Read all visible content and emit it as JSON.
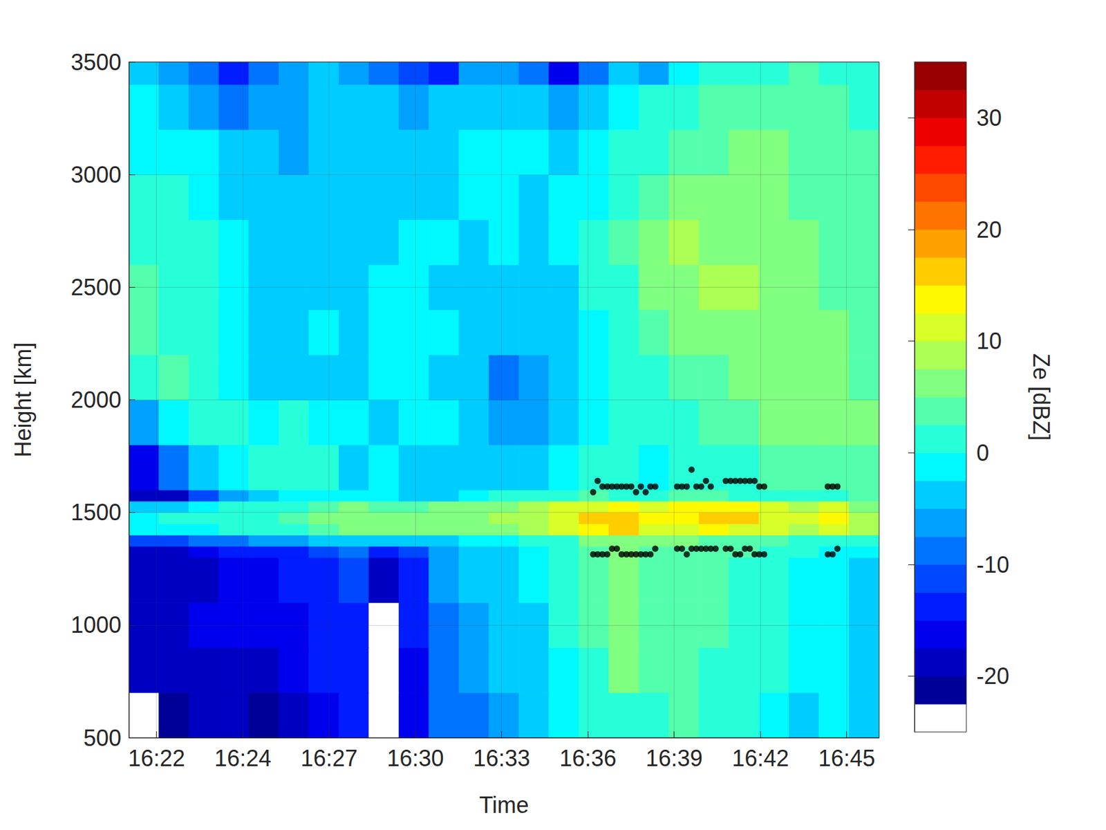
{
  "chart_data": {
    "type": "heatmap",
    "xlabel": "Time",
    "ylabel": "Height [km]",
    "xlim": [
      21.08,
      46.08
    ],
    "xticks": [
      {
        "value": 22,
        "label": "16:22"
      },
      {
        "value": 24.875,
        "label": "16:24"
      },
      {
        "value": 27.75,
        "label": "16:27"
      },
      {
        "value": 30.625,
        "label": "16:30"
      },
      {
        "value": 33.5,
        "label": "16:33"
      },
      {
        "value": 36.375,
        "label": "16:36"
      },
      {
        "value": 39.25,
        "label": "16:39"
      },
      {
        "value": 42.125,
        "label": "16:42"
      },
      {
        "value": 45,
        "label": "16:45"
      }
    ],
    "ylim": [
      500,
      3500
    ],
    "yticks": [
      500,
      1000,
      1500,
      2000,
      2500,
      3000,
      3500
    ],
    "grid": true,
    "heatmap": {
      "x": [
        21.08,
        22.08,
        23.08,
        24.08,
        25.08,
        26.08,
        27.08,
        28.08,
        29.08,
        30.08,
        31.08,
        32.08,
        33.08,
        34.08,
        35.08,
        36.08,
        37.08,
        38.08,
        39.08,
        40.08,
        41.08,
        42.08,
        43.08,
        44.08,
        45.08,
        46.08
      ],
      "y": [
        500,
        700,
        900,
        1100,
        1300,
        1350,
        1400,
        1450,
        1500,
        1550,
        1600,
        1800,
        2000,
        2200,
        2400,
        2600,
        2800,
        3000,
        3200,
        3400,
        3500
      ],
      "z": [
        [
          -24,
          -21,
          -20,
          -20,
          -21,
          -18,
          -16,
          -15,
          -23,
          -17,
          -9,
          -8,
          -6,
          -4,
          -2,
          1,
          2,
          1,
          3,
          2,
          0,
          -1,
          -3,
          -2,
          -4
        ],
        [
          -20,
          -19,
          -18,
          -18,
          -18,
          -17,
          -15,
          -14,
          -24,
          -16,
          -8,
          -7,
          -5,
          -3,
          -1,
          2,
          5,
          3,
          3,
          2,
          1,
          0,
          -2,
          -2,
          -3
        ],
        [
          -19,
          -18,
          -17,
          -17,
          -17,
          -16,
          -14,
          -13,
          -23,
          -15,
          -8,
          -6,
          -4,
          -3,
          0,
          3,
          7,
          4,
          3,
          3,
          2,
          0,
          -1,
          -2,
          -3
        ],
        [
          -19,
          -20,
          -18,
          -16,
          -16,
          -15,
          -13,
          -12,
          -19,
          -14,
          -7,
          -5,
          -4,
          -2,
          0,
          3,
          6,
          4,
          3,
          3,
          2,
          1,
          -1,
          -2,
          -3
        ],
        [
          -18,
          -19,
          -17,
          -15,
          -15,
          -14,
          -12,
          -10,
          -14,
          -12,
          -6,
          -4,
          -3,
          -1,
          1,
          4,
          5,
          4,
          4,
          3,
          3,
          1,
          0,
          -1,
          -2
        ],
        [
          -12,
          -12,
          -10,
          -8,
          -7,
          -6,
          -5,
          -4,
          -5,
          -5,
          -3,
          -2,
          -1,
          0,
          2,
          5,
          6,
          5,
          5,
          4,
          4,
          3,
          2,
          1,
          0
        ],
        [
          -2,
          -1,
          -1,
          0,
          1,
          2,
          4,
          6,
          5,
          5,
          6,
          6,
          7,
          8,
          10,
          13,
          15,
          12,
          12,
          13,
          12,
          10,
          9,
          12,
          8
        ],
        [
          -1,
          0,
          0,
          1,
          2,
          3,
          5,
          7,
          6,
          6,
          7,
          7,
          8,
          9,
          11,
          15,
          17,
          14,
          14,
          15,
          15,
          12,
          10,
          14,
          9
        ],
        [
          -4,
          -3,
          -2,
          0,
          1,
          2,
          3,
          5,
          4,
          4,
          5,
          6,
          7,
          8,
          10,
          12,
          13,
          12,
          13,
          14,
          13,
          10,
          8,
          11,
          7
        ],
        [
          -19,
          -18,
          -12,
          -6,
          -4,
          -2,
          -1,
          -1,
          -2,
          -3,
          -3,
          -2,
          0,
          1,
          2,
          3,
          2,
          2,
          3,
          3,
          2,
          2,
          2,
          2,
          3
        ],
        [
          -17,
          -10,
          -4,
          -2,
          0,
          2,
          0,
          -3,
          -2,
          -4,
          -3,
          -4,
          -5,
          -3,
          -2,
          0,
          0,
          -1,
          0,
          1,
          2,
          3,
          4,
          4,
          4
        ],
        [
          -6,
          -2,
          2,
          0,
          -1,
          0,
          -2,
          -1,
          -3,
          -2,
          -2,
          -3,
          -6,
          -7,
          -3,
          -1,
          0,
          1,
          2,
          3,
          4,
          5,
          6,
          6,
          5
        ],
        [
          2,
          3,
          0,
          -2,
          -3,
          -4,
          -3,
          -3,
          -1,
          -2,
          -3,
          -4,
          -8,
          -6,
          -4,
          -2,
          0,
          1,
          3,
          4,
          5,
          6,
          6,
          5,
          4
        ],
        [
          3,
          2,
          0,
          -2,
          -3,
          -4,
          -2,
          -3,
          -2,
          -1,
          -2,
          -3,
          -4,
          -3,
          -3,
          -1,
          1,
          3,
          5,
          6,
          7,
          7,
          6,
          5,
          4
        ],
        [
          4,
          2,
          1,
          -1,
          -3,
          -5,
          -4,
          -3,
          -2,
          -2,
          -3,
          -4,
          -3,
          -4,
          -3,
          0,
          2,
          5,
          7,
          8,
          8,
          7,
          6,
          4,
          3
        ],
        [
          2,
          1,
          0,
          -2,
          -4,
          -4,
          -5,
          -3,
          -3,
          -2,
          -2,
          -3,
          -2,
          -3,
          -2,
          0,
          3,
          6,
          8,
          7,
          7,
          6,
          5,
          4,
          3
        ],
        [
          0,
          0,
          -1,
          -3,
          -4,
          -5,
          -4,
          -4,
          -4,
          -3,
          -3,
          -2,
          -2,
          -3,
          -2,
          -1,
          2,
          4,
          5,
          5,
          6,
          5,
          4,
          4,
          3
        ],
        [
          -1,
          -2,
          -2,
          -5,
          -5,
          -6,
          -5,
          -5,
          -4,
          -3,
          -3,
          -2,
          -1,
          -2,
          -3,
          -1,
          1,
          2,
          3,
          4,
          5,
          5,
          4,
          4,
          3
        ],
        [
          -2,
          -4,
          -6,
          -9,
          -7,
          -6,
          -5,
          -4,
          -5,
          -6,
          -5,
          -4,
          -3,
          -4,
          -6,
          -5,
          -1,
          1,
          2,
          3,
          3,
          4,
          4,
          3,
          2
        ],
        [
          -4,
          -6,
          -10,
          -13,
          -9,
          -7,
          -5,
          -6,
          -8,
          -12,
          -14,
          -7,
          -6,
          -10,
          -16,
          -8,
          -3,
          -6,
          -2,
          0,
          1,
          2,
          3,
          2,
          1
        ]
      ]
    },
    "colorbar": {
      "label": "Ze [dBZ]",
      "lim": [
        -25,
        35
      ],
      "ticks": [
        -20,
        -10,
        0,
        10,
        20,
        30
      ],
      "levels": [
        -22.5,
        -20,
        -17.5,
        -15,
        -12.5,
        -10,
        -7.5,
        -5,
        -2.5,
        0,
        2.5,
        5,
        7.5,
        10,
        12.5,
        15,
        17.5,
        20,
        22.5,
        25,
        27.5,
        30,
        32.5,
        35
      ]
    },
    "series": [
      {
        "type": "scatter",
        "color": "#000000",
        "marker": "circle",
        "x": [
          36.55,
          36.7,
          36.86,
          37.02,
          37.18,
          37.34,
          37.5,
          37.66,
          37.82,
          37.98,
          38.14,
          38.3,
          38.46,
          38.62,
          39.35,
          39.51,
          39.67,
          39.83,
          39.99,
          40.15,
          40.31,
          40.47,
          40.97,
          41.13,
          41.29,
          41.45,
          41.61,
          41.77,
          41.93,
          42.09,
          42.25,
          44.37,
          44.53,
          44.69
        ],
        "values": [
          1590,
          1640,
          1615,
          1615,
          1615,
          1615,
          1615,
          1615,
          1615,
          1590,
          1615,
          1590,
          1615,
          1615,
          1615,
          1615,
          1615,
          1690,
          1615,
          1615,
          1640,
          1615,
          1640,
          1640,
          1640,
          1640,
          1640,
          1640,
          1640,
          1615,
          1615,
          1615,
          1615,
          1615
        ]
      },
      {
        "type": "scatter",
        "color": "#000000",
        "marker": "circle",
        "x": [
          36.55,
          36.7,
          36.86,
          37.02,
          37.18,
          37.34,
          37.5,
          37.66,
          37.82,
          37.98,
          38.14,
          38.3,
          38.46,
          38.62,
          39.35,
          39.51,
          39.67,
          39.83,
          39.99,
          40.15,
          40.31,
          40.47,
          40.63,
          40.97,
          41.13,
          41.29,
          41.45,
          41.61,
          41.77,
          41.93,
          42.09,
          42.25,
          44.37,
          44.53,
          44.69
        ],
        "values": [
          1314,
          1314,
          1314,
          1314,
          1339,
          1339,
          1314,
          1314,
          1314,
          1314,
          1314,
          1314,
          1314,
          1339,
          1339,
          1339,
          1314,
          1339,
          1339,
          1339,
          1339,
          1339,
          1339,
          1339,
          1339,
          1314,
          1314,
          1339,
          1339,
          1314,
          1314,
          1314,
          1314,
          1314,
          1339
        ]
      }
    ]
  }
}
